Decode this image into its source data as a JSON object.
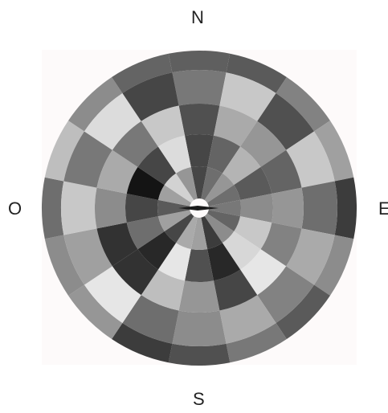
{
  "labels": {
    "north": "N",
    "west": "O",
    "east": "E",
    "south": "S"
  },
  "colors": {
    "background_square": "#fdfafa"
  },
  "polar_grid": {
    "rings": 5,
    "sectors": 16,
    "gray_levels": [
      [
        95,
        90,
        130,
        160,
        60,
        140,
        90,
        120,
        80,
        60,
        150,
        140,
        110,
        190,
        140,
        100
      ],
      [
        120,
        200,
        80,
        200,
        110,
        170,
        130,
        170,
        140,
        110,
        230,
        160,
        200,
        120,
        220,
        70
      ],
      [
        80,
        170,
        150,
        100,
        150,
        130,
        230,
        70,
        150,
        190,
        50,
        50,
        140,
        170,
        120,
        200
      ],
      [
        70,
        100,
        180,
        90,
        140,
        200,
        215,
        40,
        80,
        230,
        40,
        110,
        70,
        20,
        70,
        220
      ],
      [
        70,
        110,
        150,
        110,
        120,
        100,
        140,
        60,
        160,
        170,
        70,
        160,
        90,
        160,
        210,
        150
      ]
    ]
  }
}
